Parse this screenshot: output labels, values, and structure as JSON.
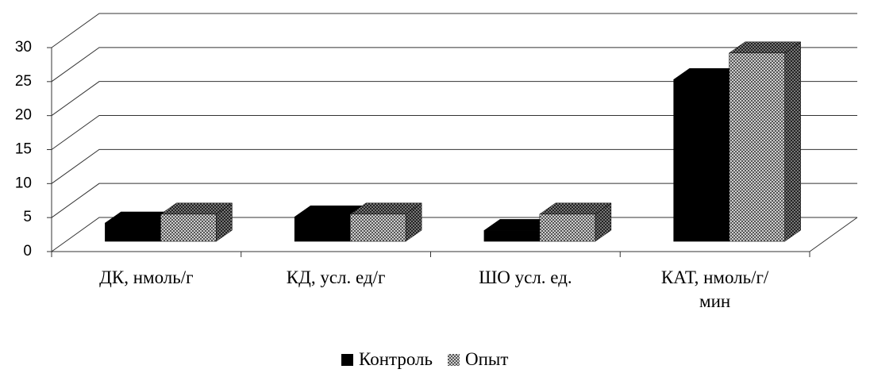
{
  "chart_data": {
    "type": "bar3d",
    "categories": [
      "ДК, нмоль/г",
      "КД, усл. ед/г",
      "ШО усл. ед.",
      "КАТ, нмоль/г/мин"
    ],
    "series": [
      {
        "name": "Контроль",
        "color": "#000000",
        "values": [
          2.7,
          3.6,
          1.6,
          23.8
        ]
      },
      {
        "name": "Опыт",
        "color": "#9a9a9a",
        "values": [
          4.0,
          4.0,
          4.0,
          27.7
        ]
      }
    ],
    "ylim": [
      0,
      30
    ],
    "yticks": [
      0,
      5,
      10,
      15,
      20,
      25,
      30
    ],
    "grid": true,
    "legend": "bottom"
  }
}
